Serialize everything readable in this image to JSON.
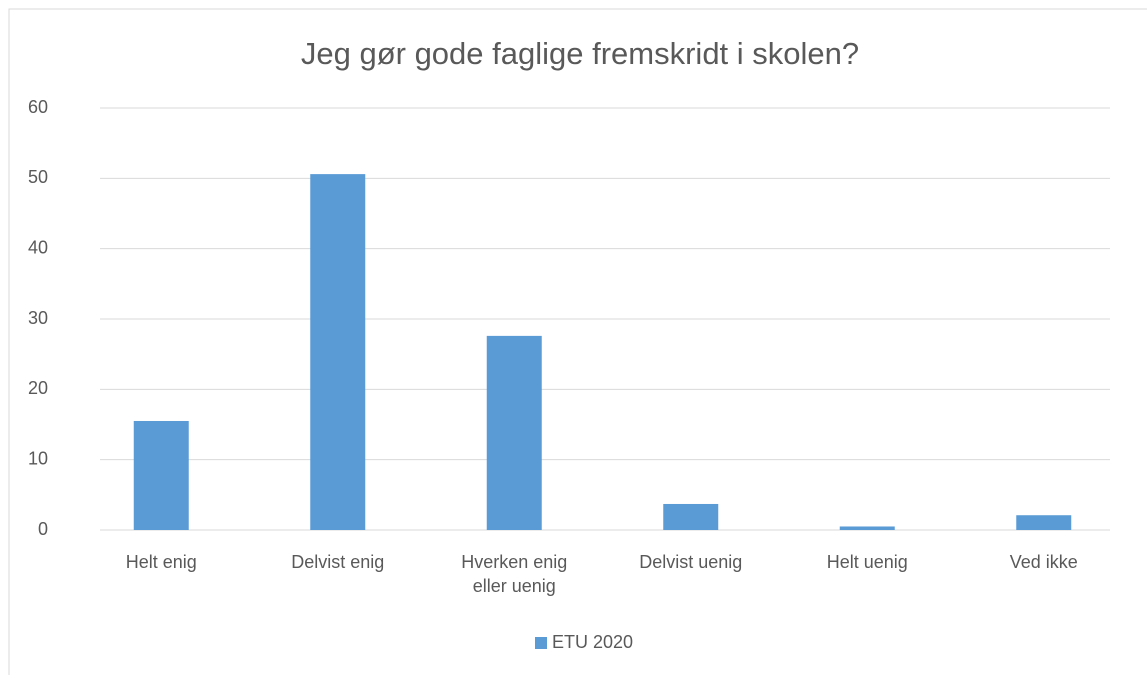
{
  "chart_data": {
    "type": "bar",
    "title": "Jeg gør gode faglige fremskridt i skolen?",
    "categories": [
      "Helt enig",
      "Delvist enig",
      "Hverken enig eller uenig",
      "Delvist uenig",
      "Helt uenig",
      "Ved ikke"
    ],
    "series": [
      {
        "name": "ETU 2020",
        "color": "#5b9bd5",
        "values": [
          15.5,
          50.6,
          27.6,
          3.7,
          0.5,
          2.1
        ]
      }
    ],
    "ylim": [
      0,
      60
    ],
    "yticks": [
      0,
      10,
      20,
      30,
      40,
      50,
      60
    ],
    "grid": true,
    "legend": "bottom"
  }
}
